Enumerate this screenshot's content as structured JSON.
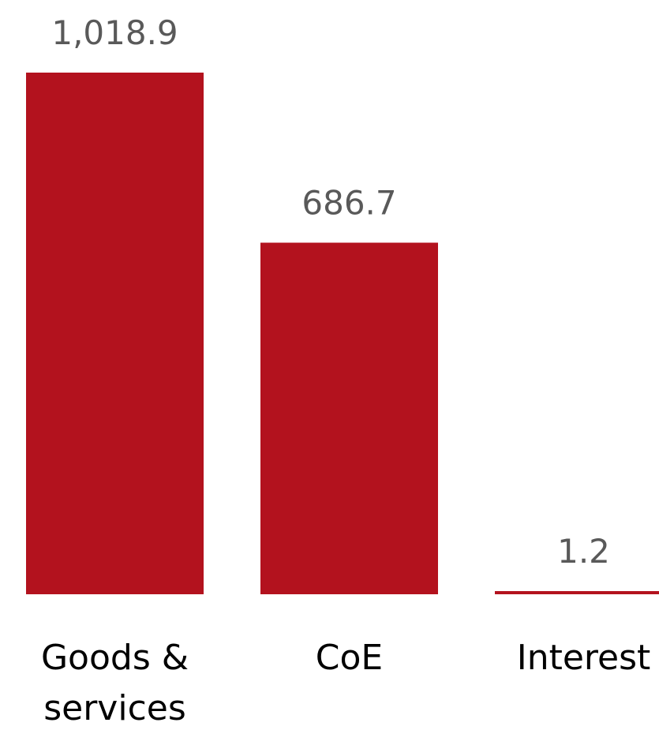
{
  "chart_data": {
    "type": "bar",
    "categories": [
      "Goods & services",
      "CoE",
      "Interest"
    ],
    "category_label_lines": [
      [
        "Goods &",
        "services"
      ],
      [
        "CoE"
      ],
      [
        "Interest"
      ]
    ],
    "values": [
      1018.9,
      686.7,
      1.2
    ],
    "data_labels": [
      "1,018.9",
      "686.7",
      "1.2"
    ],
    "bar_color": "#B3121E",
    "ylim": [
      0,
      1018.9
    ],
    "title": "",
    "xlabel": "",
    "ylabel": "",
    "grid": false,
    "legend": "none"
  }
}
